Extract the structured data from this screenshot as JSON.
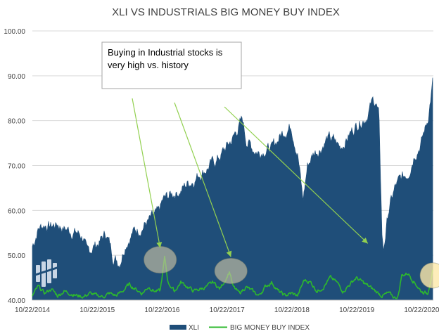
{
  "chart_data": {
    "type": "area",
    "title": "XLI VS INDUSTRIALS BIG MONEY BUY INDEX",
    "xlabel": "",
    "ylabel": "",
    "ylim": [
      40,
      100
    ],
    "yticks": [
      "100.00",
      "90.00",
      "80.00",
      "70.00",
      "60.00",
      "50.00",
      "40.00"
    ],
    "xticks": [
      "10/22/2014",
      "10/22/2015",
      "10/22/2016",
      "10/22/2017",
      "10/22/2018",
      "10/22/2019",
      "10/22/2020"
    ],
    "grid": true,
    "legend": "bottom",
    "series": [
      {
        "name": "XLI",
        "type": "area",
        "color": "#1f4e79",
        "x": [
          2014.81,
          2014.9,
          2015.0,
          2015.1,
          2015.2,
          2015.3,
          2015.4,
          2015.5,
          2015.6,
          2015.65,
          2015.75,
          2015.85,
          2015.95,
          2016.05,
          2016.15,
          2016.25,
          2016.35,
          2016.45,
          2016.55,
          2016.65,
          2016.75,
          2016.82,
          2016.9,
          2017.0,
          2017.1,
          2017.2,
          2017.3,
          2017.4,
          2017.5,
          2017.6,
          2017.7,
          2017.8,
          2017.9,
          2018.0,
          2018.05,
          2018.1,
          2018.2,
          2018.3,
          2018.4,
          2018.5,
          2018.6,
          2018.7,
          2018.8,
          2018.9,
          2018.98,
          2019.05,
          2019.15,
          2019.25,
          2019.35,
          2019.45,
          2019.55,
          2019.65,
          2019.75,
          2019.85,
          2019.95,
          2020.05,
          2020.1,
          2020.15,
          2020.2,
          2020.22,
          2020.3,
          2020.4,
          2020.5,
          2020.6,
          2020.7,
          2020.8,
          2020.9,
          2020.98
        ],
        "values": [
          52,
          56,
          57,
          56.5,
          57,
          56,
          55.5,
          55,
          54,
          50,
          52,
          53,
          55,
          50,
          48.5,
          53,
          55,
          56,
          57,
          58,
          59,
          62,
          63,
          64,
          64.5,
          66,
          67,
          68.5,
          69.5,
          70.5,
          72,
          74,
          76,
          79,
          80,
          76,
          74,
          73,
          74,
          73.5,
          76,
          78,
          79,
          73,
          62,
          70,
          73,
          74,
          76,
          75.5,
          74,
          76,
          78,
          80,
          81,
          84,
          84.5,
          81,
          54,
          51,
          60,
          65,
          67,
          68.5,
          73,
          75,
          80,
          88.5
        ]
      },
      {
        "name": "BIG MONEY BUY INDEX",
        "type": "line",
        "color": "#2db82d",
        "x": [
          2014.81,
          2014.9,
          2015.0,
          2015.1,
          2015.2,
          2015.3,
          2015.4,
          2015.5,
          2015.6,
          2015.7,
          2015.8,
          2015.9,
          2016.0,
          2016.1,
          2016.2,
          2016.3,
          2016.4,
          2016.5,
          2016.6,
          2016.7,
          2016.78,
          2016.85,
          2016.9,
          2017.0,
          2017.1,
          2017.2,
          2017.3,
          2017.4,
          2017.5,
          2017.6,
          2017.7,
          2017.8,
          2017.85,
          2017.9,
          2018.0,
          2018.1,
          2018.2,
          2018.3,
          2018.4,
          2018.5,
          2018.6,
          2018.7,
          2018.8,
          2018.9,
          2019.0,
          2019.1,
          2019.2,
          2019.3,
          2019.4,
          2019.5,
          2019.6,
          2019.7,
          2019.8,
          2019.9,
          2020.0,
          2020.1,
          2020.2,
          2020.3,
          2020.4,
          2020.45,
          2020.5,
          2020.6,
          2020.7,
          2020.8,
          2020.9,
          2020.98
        ],
        "values": [
          41,
          43,
          41.5,
          42.5,
          41,
          42,
          41.5,
          41,
          40.8,
          41.5,
          41,
          40.8,
          41.5,
          41,
          42,
          43.5,
          42.5,
          41.5,
          43,
          42,
          42,
          49.5,
          44,
          42,
          44,
          43,
          42,
          42.5,
          43,
          44,
          42.5,
          45,
          46.5,
          43,
          41.5,
          43,
          42,
          41,
          43,
          44,
          42,
          41,
          41.5,
          41,
          44.5,
          44,
          42,
          43,
          45,
          44,
          42,
          43.5,
          45,
          44,
          43,
          42,
          41,
          41.5,
          40.5,
          41,
          45.5,
          46,
          44,
          42,
          41.5,
          46.5
        ]
      }
    ],
    "annotations": [
      {
        "text_lines": [
          "Buying in Industrial stocks is",
          "very high vs. history"
        ]
      }
    ],
    "callout_targets": [
      {
        "x": 2016.78,
        "y": 48.5
      },
      {
        "x": 2017.87,
        "y": 46.5
      },
      {
        "x": 2019.98,
        "y": 49.5
      }
    ],
    "highlights": [
      {
        "x": 2016.78,
        "y": 49
      },
      {
        "x": 2017.87,
        "y": 46.5
      },
      {
        "x": 2020.98,
        "y": 45.5
      }
    ]
  }
}
